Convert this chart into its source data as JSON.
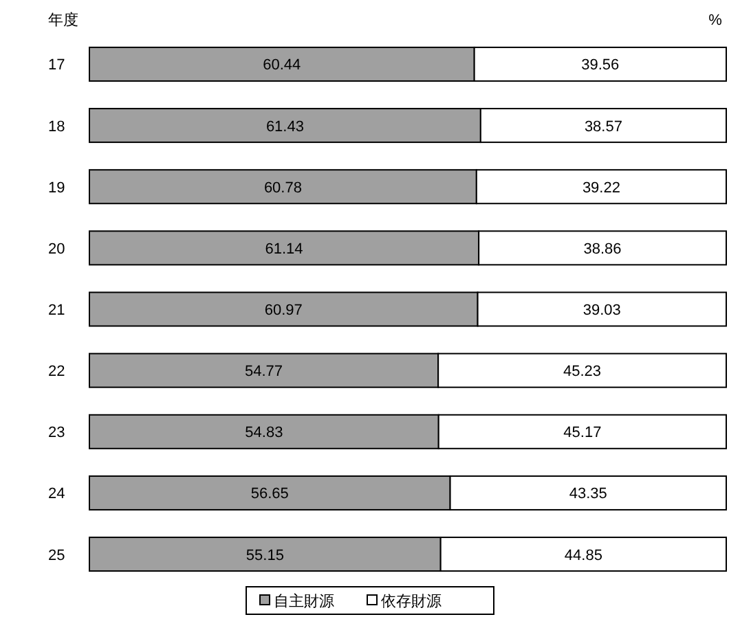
{
  "chart_data": {
    "type": "bar",
    "orientation": "horizontal",
    "stacked": true,
    "ylabel": "年度",
    "xlabel": "%",
    "categories": [
      "17",
      "18",
      "19",
      "20",
      "21",
      "22",
      "23",
      "24",
      "25"
    ],
    "series": [
      {
        "name": "自主財源",
        "color": "#a0a0a0",
        "values": [
          60.44,
          61.43,
          60.78,
          61.14,
          60.97,
          54.77,
          54.83,
          56.65,
          55.15
        ]
      },
      {
        "name": "依存財源",
        "color": "#ffffff",
        "values": [
          39.56,
          38.57,
          39.22,
          38.86,
          39.03,
          45.23,
          45.17,
          43.35,
          44.85
        ]
      }
    ],
    "data_labels": true,
    "legend": "bottom",
    "grid": false
  }
}
